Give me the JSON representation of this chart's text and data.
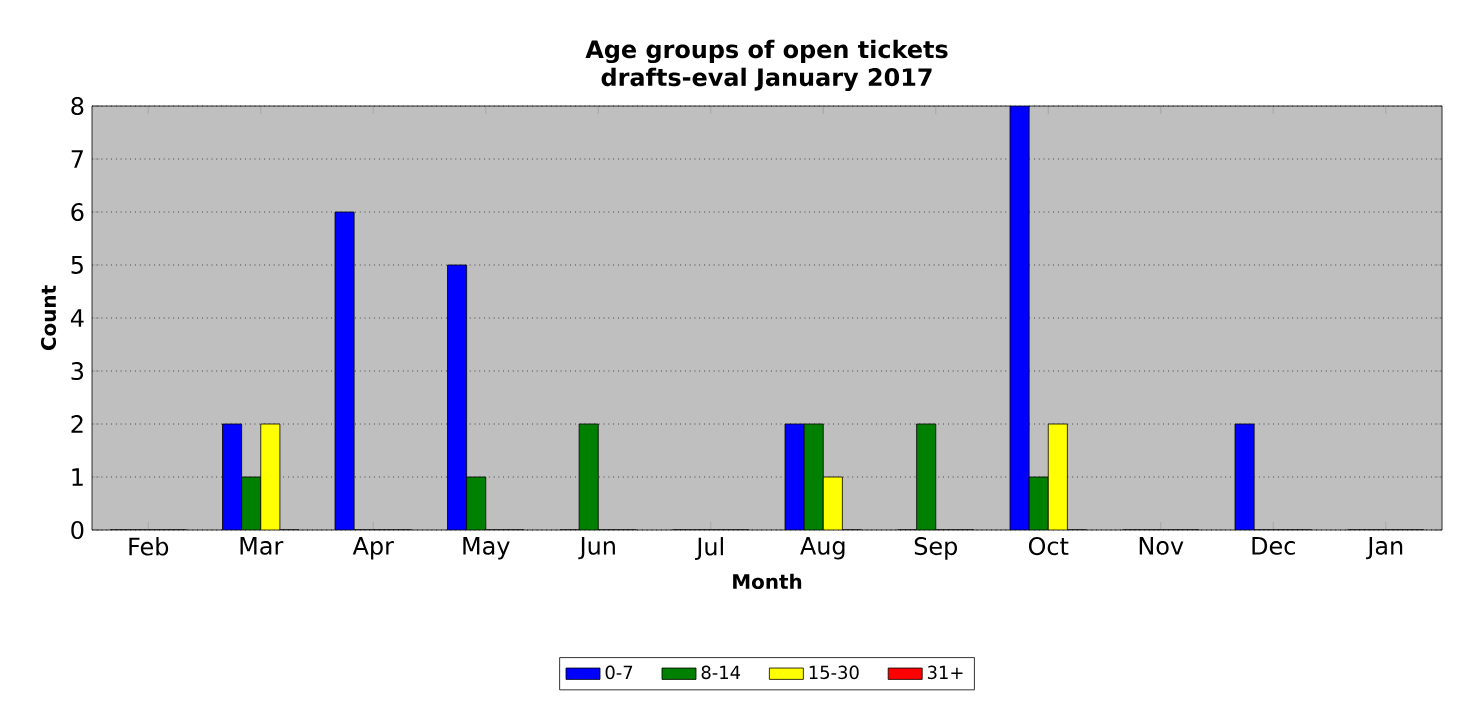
{
  "chart_data": {
    "type": "bar",
    "title": "Age groups of open tickets",
    "subtitle": "drafts-eval January 2017",
    "xlabel": "Month",
    "ylabel": "Count",
    "categories": [
      "Feb",
      "Mar",
      "Apr",
      "May",
      "Jun",
      "Jul",
      "Aug",
      "Sep",
      "Oct",
      "Nov",
      "Dec",
      "Jan"
    ],
    "series": [
      {
        "name": "0-7",
        "color": "#0000ff",
        "values": [
          0,
          2,
          6,
          5,
          0,
          0,
          2,
          0,
          8,
          0,
          2,
          0
        ]
      },
      {
        "name": "8-14",
        "color": "#008000",
        "values": [
          0,
          1,
          0,
          1,
          2,
          0,
          2,
          2,
          1,
          0,
          0,
          0
        ]
      },
      {
        "name": "15-30",
        "color": "#ffff00",
        "values": [
          0,
          2,
          0,
          0,
          0,
          0,
          1,
          0,
          2,
          0,
          0,
          0
        ]
      },
      {
        "name": "31+",
        "color": "#ff0000",
        "values": [
          0,
          0,
          0,
          0,
          0,
          0,
          0,
          0,
          0,
          0,
          0,
          0
        ]
      }
    ],
    "ylim": [
      0,
      8
    ],
    "yticks": [
      0,
      1,
      2,
      3,
      4,
      5,
      6,
      7,
      8
    ],
    "grid": "y",
    "legend": "bottom"
  }
}
